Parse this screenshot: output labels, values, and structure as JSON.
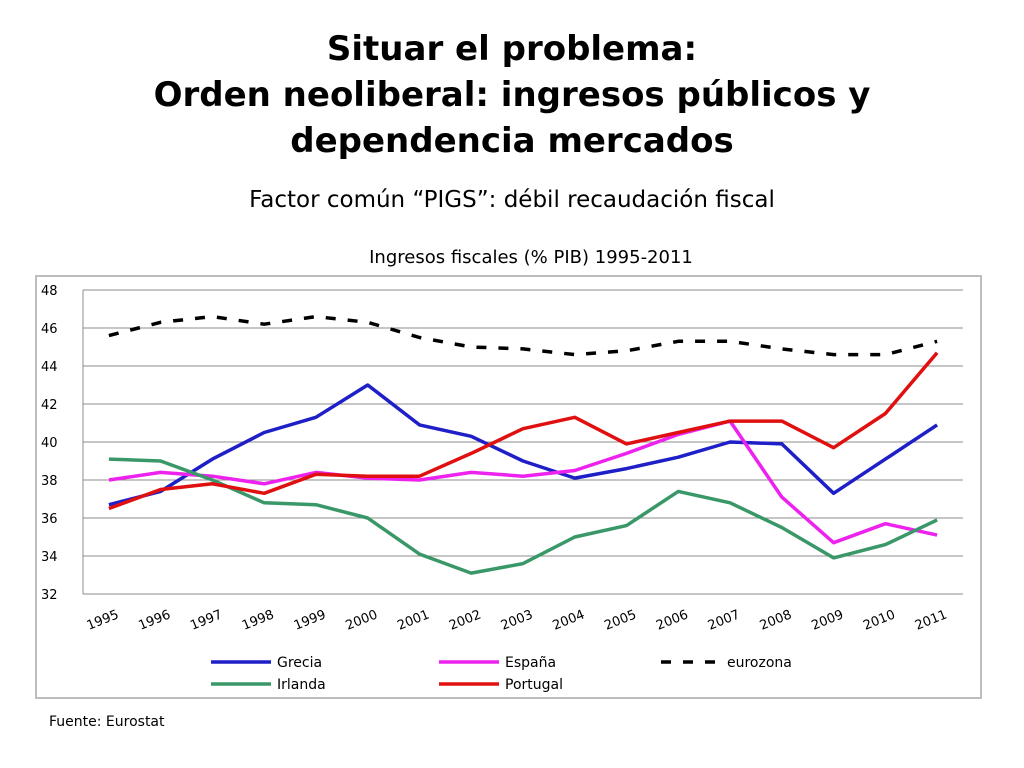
{
  "slide": {
    "title_line1": "Situar el problema:",
    "title_line2": "Orden neoliberal: ingresos públicos y",
    "title_line3": "dependencia mercados",
    "subtitle": "Factor común “PIGS”: débil recaudación fiscal",
    "source": "Fuente: Eurostat"
  },
  "chart_data": {
    "type": "line",
    "title": "Ingresos fiscales (% PIB) 1995-2011",
    "xlabel": "",
    "ylabel": "",
    "x": [
      "1995",
      "1996",
      "1997",
      "1998",
      "1999",
      "2000",
      "2001",
      "2002",
      "2003",
      "2004",
      "2005",
      "2006",
      "2007",
      "2008",
      "2009",
      "2010",
      "2011"
    ],
    "ylim": [
      32,
      48
    ],
    "yticks": [
      32,
      34,
      36,
      38,
      40,
      42,
      44,
      46,
      48
    ],
    "grid": true,
    "legend_position": "bottom",
    "series": [
      {
        "name": "Grecia",
        "color": "#1f1fc8",
        "style": "solid",
        "values": [
          36.7,
          37.4,
          39.1,
          40.5,
          41.3,
          43.0,
          40.9,
          40.3,
          39.0,
          38.1,
          38.6,
          39.2,
          40.0,
          39.9,
          37.3,
          39.1,
          40.9
        ]
      },
      {
        "name": "España",
        "color": "#ee22ee",
        "style": "solid",
        "values": [
          38.0,
          38.4,
          38.2,
          37.8,
          38.4,
          38.1,
          38.0,
          38.4,
          38.2,
          38.5,
          39.4,
          40.4,
          41.1,
          37.1,
          34.7,
          35.7,
          35.1
        ]
      },
      {
        "name": "eurozona",
        "color": "#000000",
        "style": "dashed",
        "values": [
          45.6,
          46.3,
          46.6,
          46.2,
          46.6,
          46.3,
          45.5,
          45.0,
          44.9,
          44.6,
          44.8,
          45.3,
          45.3,
          44.9,
          44.6,
          44.6,
          45.3
        ]
      },
      {
        "name": "Irlanda",
        "color": "#3a9868",
        "style": "solid",
        "values": [
          39.1,
          39.0,
          38.0,
          36.8,
          36.7,
          36.0,
          34.1,
          33.1,
          33.6,
          35.0,
          35.6,
          37.4,
          36.8,
          35.5,
          33.9,
          34.6,
          35.9
        ]
      },
      {
        "name": "Portugal",
        "color": "#e01010",
        "style": "solid",
        "values": [
          36.5,
          37.5,
          37.8,
          37.3,
          38.3,
          38.2,
          38.2,
          39.4,
          40.7,
          41.3,
          39.9,
          40.5,
          41.1,
          41.1,
          39.7,
          41.5,
          44.7
        ]
      }
    ]
  }
}
